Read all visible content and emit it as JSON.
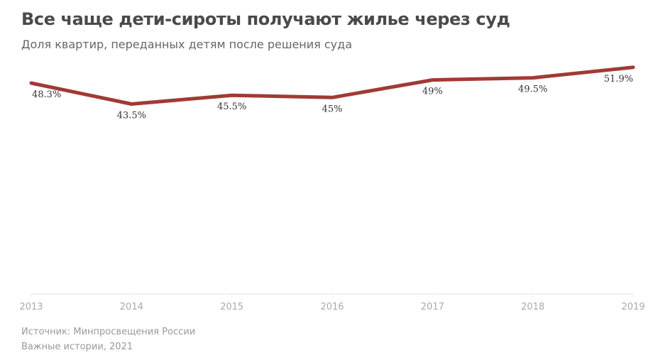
{
  "header": {
    "title": "Все чаще дети-сироты получают жилье через суд",
    "subtitle": "Доля квартир, переданных детям после решения суда"
  },
  "footer": {
    "source": "Источник: Минпросвещения России",
    "credit": "Важные истории, 2021"
  },
  "chart_data": {
    "type": "line",
    "title": "Все чаще дети-сироты получают жилье через суд",
    "subtitle": "Доля квартир, переданных детям после решения суда",
    "categories": [
      "2013",
      "2014",
      "2015",
      "2016",
      "2017",
      "2018",
      "2019"
    ],
    "series": [
      {
        "values": [
          48.3,
          43.5,
          45.5,
          45,
          49,
          49.5,
          51.9
        ],
        "labels": [
          "48.3%",
          "43.5%",
          "45.5%",
          "45%",
          "49%",
          "49.5%",
          "51.9%"
        ],
        "color": "#a13a34"
      }
    ],
    "ylim": [
      0,
      55
    ],
    "grid": false,
    "legend": "none",
    "colors": {
      "axis": "#eeeeee",
      "tick_label": "#aaaaaa",
      "data_label": "#333333"
    }
  }
}
